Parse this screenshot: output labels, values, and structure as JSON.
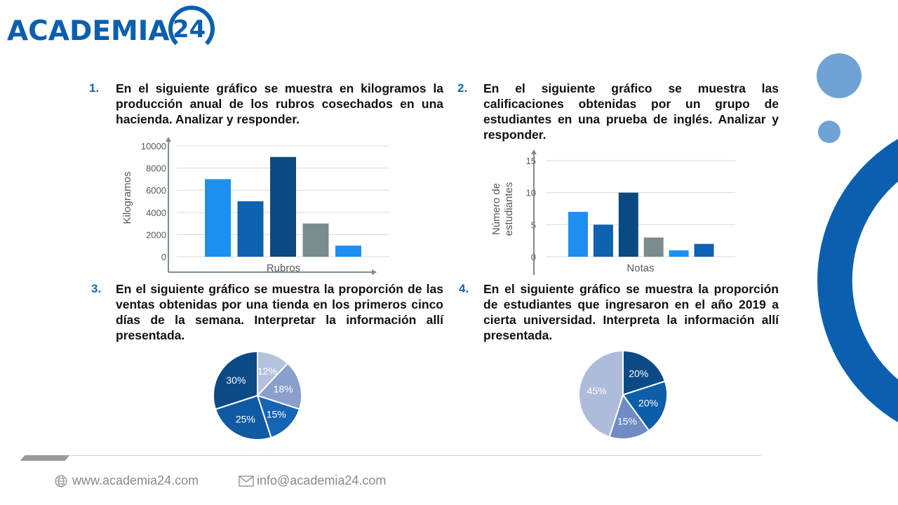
{
  "logo": {
    "text": "ACADEMIA",
    "number": "24"
  },
  "questions": [
    {
      "number": "1.",
      "text": "En el siguiente gráfico se muestra en kilogramos la producción anual de los rubros cosechados en una hacienda. Analizar y responder."
    },
    {
      "number": "2.",
      "text": "En el siguiente gráfico se muestra las calificaciones obtenidas por un grupo de estudiantes en una prueba de inglés. Analizar y responder."
    },
    {
      "number": "3.",
      "text": "En el siguiente gráfico se muestra la proporción de las ventas obtenidas por una tienda en los primeros cinco días de la semana. Interpretar la información allí presentada."
    },
    {
      "number": "4.",
      "text": "En el siguiente gráfico se muestra la proporción de estudiantes que ingresaron en el año 2019 a cierta universidad. Interpreta la información allí presentada."
    }
  ],
  "chart_data": [
    {
      "type": "bar",
      "title": "",
      "xlabel": "Rubros",
      "ylabel": "Kilogramos",
      "ylim": [
        0,
        10000
      ],
      "yticks": [
        "0",
        "2000",
        "4000",
        "6000",
        "8000",
        "10000"
      ],
      "grid": true,
      "values": [
        7000,
        5000,
        9000,
        3000,
        1000
      ],
      "colors": [
        "#1e8ff0",
        "#0f62b0",
        "#0b4a80",
        "#7b8c8c",
        "#1e8ff0"
      ]
    },
    {
      "type": "bar",
      "title": "",
      "xlabel": "Notas",
      "ylabel": "Número de estudiantes",
      "ylim": [
        0,
        15
      ],
      "yticks": [
        "0",
        "5",
        "10",
        "15"
      ],
      "grid": true,
      "values": [
        7,
        5,
        10,
        3,
        1,
        2
      ],
      "colors": [
        "#1e8ff0",
        "#0f62b0",
        "#0b4a80",
        "#7b8c8c",
        "#1e8ff0",
        "#0f62b0"
      ]
    },
    {
      "type": "pie",
      "values": [
        12,
        18,
        15,
        25,
        30
      ],
      "labels": [
        "12%",
        "18%",
        "15%",
        "25%",
        "30%"
      ],
      "colors": [
        "#b4c2de",
        "#8a9fcc",
        "#1565b5",
        "#0f5aa3",
        "#0b4a85"
      ]
    },
    {
      "type": "pie",
      "values": [
        20,
        20,
        15,
        45
      ],
      "labels": [
        "20%",
        "20%",
        "15%",
        "45%"
      ],
      "colors": [
        "#0b4a85",
        "#0d5ea8",
        "#6f8cc4",
        "#aebbda"
      ]
    }
  ],
  "footer": {
    "website": "www.academia24.com",
    "email": "info@academia24.com"
  }
}
